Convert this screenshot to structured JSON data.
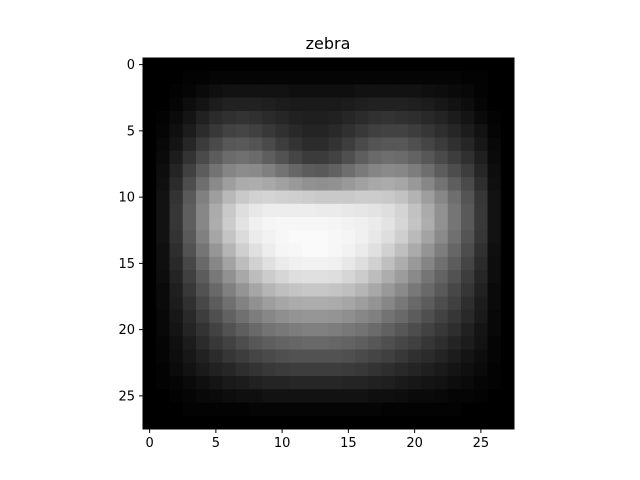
{
  "chart_data": {
    "type": "heatmap",
    "title": "zebra",
    "xlabel": "",
    "ylabel": "",
    "colormap": "gray",
    "vmin": 0,
    "vmax": 1,
    "grid": false,
    "legend": "none",
    "xlim": [
      -0.5,
      27.5
    ],
    "ylim": [
      27.5,
      -0.5
    ],
    "x_ticks": [
      0,
      5,
      10,
      15,
      20,
      25
    ],
    "x_tick_labels": [
      "0",
      "5",
      "10",
      "15",
      "20",
      "25"
    ],
    "y_ticks": [
      0,
      5,
      10,
      15,
      20,
      25
    ],
    "y_tick_labels": [
      "0",
      "5",
      "10",
      "15",
      "20",
      "25"
    ],
    "grid_size": [
      28,
      28
    ],
    "rows": [
      [
        0.0,
        0.0,
        0.0,
        0.0,
        0.0,
        0.0,
        0.0,
        0.0,
        0.0,
        0.0,
        0.0,
        0.0,
        0.0,
        0.0,
        0.0,
        0.0,
        0.0,
        0.0,
        0.0,
        0.0,
        0.0,
        0.0,
        0.0,
        0.0,
        0.0,
        0.0,
        0.0,
        0.0
      ],
      [
        0.0,
        0.0,
        0.0,
        0.01,
        0.01,
        0.02,
        0.02,
        0.02,
        0.02,
        0.02,
        0.02,
        0.02,
        0.02,
        0.02,
        0.02,
        0.02,
        0.02,
        0.02,
        0.02,
        0.02,
        0.02,
        0.02,
        0.02,
        0.02,
        0.01,
        0.01,
        0.0,
        0.0
      ],
      [
        0.0,
        0.0,
        0.01,
        0.02,
        0.04,
        0.06,
        0.07,
        0.07,
        0.07,
        0.07,
        0.07,
        0.06,
        0.06,
        0.06,
        0.06,
        0.06,
        0.07,
        0.07,
        0.07,
        0.07,
        0.07,
        0.06,
        0.05,
        0.04,
        0.03,
        0.01,
        0.0,
        0.0
      ],
      [
        0.0,
        0.0,
        0.02,
        0.05,
        0.08,
        0.11,
        0.13,
        0.13,
        0.13,
        0.12,
        0.11,
        0.1,
        0.1,
        0.1,
        0.1,
        0.11,
        0.12,
        0.13,
        0.13,
        0.13,
        0.12,
        0.11,
        0.09,
        0.07,
        0.05,
        0.02,
        0.0,
        0.0
      ],
      [
        0.0,
        0.01,
        0.04,
        0.08,
        0.13,
        0.17,
        0.19,
        0.2,
        0.19,
        0.17,
        0.15,
        0.13,
        0.12,
        0.12,
        0.13,
        0.15,
        0.17,
        0.19,
        0.2,
        0.19,
        0.18,
        0.16,
        0.14,
        0.11,
        0.08,
        0.04,
        0.01,
        0.0
      ],
      [
        0.0,
        0.02,
        0.06,
        0.11,
        0.17,
        0.22,
        0.26,
        0.27,
        0.25,
        0.22,
        0.19,
        0.16,
        0.14,
        0.14,
        0.16,
        0.19,
        0.22,
        0.25,
        0.26,
        0.26,
        0.24,
        0.21,
        0.18,
        0.15,
        0.11,
        0.07,
        0.02,
        0.0
      ],
      [
        0.0,
        0.03,
        0.08,
        0.15,
        0.23,
        0.29,
        0.34,
        0.35,
        0.33,
        0.29,
        0.24,
        0.2,
        0.17,
        0.17,
        0.2,
        0.24,
        0.29,
        0.33,
        0.34,
        0.34,
        0.31,
        0.27,
        0.23,
        0.19,
        0.15,
        0.09,
        0.03,
        0.0
      ],
      [
        0.0,
        0.04,
        0.11,
        0.2,
        0.29,
        0.36,
        0.42,
        0.44,
        0.42,
        0.37,
        0.32,
        0.27,
        0.23,
        0.23,
        0.26,
        0.31,
        0.37,
        0.41,
        0.43,
        0.42,
        0.39,
        0.34,
        0.29,
        0.24,
        0.19,
        0.12,
        0.04,
        0.0
      ],
      [
        0.0,
        0.05,
        0.14,
        0.25,
        0.36,
        0.45,
        0.52,
        0.55,
        0.54,
        0.5,
        0.45,
        0.4,
        0.36,
        0.35,
        0.38,
        0.43,
        0.48,
        0.52,
        0.54,
        0.53,
        0.49,
        0.43,
        0.36,
        0.3,
        0.24,
        0.15,
        0.05,
        0.0
      ],
      [
        0.0,
        0.06,
        0.17,
        0.3,
        0.43,
        0.54,
        0.62,
        0.67,
        0.68,
        0.66,
        0.63,
        0.6,
        0.57,
        0.56,
        0.57,
        0.6,
        0.63,
        0.66,
        0.67,
        0.65,
        0.6,
        0.53,
        0.45,
        0.37,
        0.29,
        0.18,
        0.06,
        0.0
      ],
      [
        0.0,
        0.07,
        0.2,
        0.35,
        0.5,
        0.62,
        0.72,
        0.79,
        0.82,
        0.83,
        0.82,
        0.81,
        0.8,
        0.79,
        0.79,
        0.79,
        0.8,
        0.8,
        0.79,
        0.76,
        0.7,
        0.62,
        0.53,
        0.43,
        0.33,
        0.21,
        0.07,
        0.0
      ],
      [
        0.0,
        0.07,
        0.21,
        0.37,
        0.53,
        0.67,
        0.79,
        0.87,
        0.91,
        0.93,
        0.93,
        0.93,
        0.93,
        0.92,
        0.92,
        0.91,
        0.9,
        0.89,
        0.87,
        0.83,
        0.76,
        0.67,
        0.57,
        0.46,
        0.35,
        0.22,
        0.07,
        0.0
      ],
      [
        0.0,
        0.07,
        0.21,
        0.37,
        0.53,
        0.68,
        0.8,
        0.89,
        0.94,
        0.96,
        0.97,
        0.97,
        0.97,
        0.97,
        0.96,
        0.95,
        0.94,
        0.92,
        0.89,
        0.84,
        0.77,
        0.68,
        0.57,
        0.46,
        0.35,
        0.22,
        0.07,
        0.0
      ],
      [
        0.0,
        0.07,
        0.2,
        0.35,
        0.5,
        0.65,
        0.77,
        0.86,
        0.92,
        0.95,
        0.97,
        0.98,
        0.98,
        0.98,
        0.97,
        0.96,
        0.94,
        0.91,
        0.87,
        0.81,
        0.73,
        0.64,
        0.54,
        0.44,
        0.33,
        0.21,
        0.07,
        0.0
      ],
      [
        0.0,
        0.06,
        0.18,
        0.32,
        0.46,
        0.59,
        0.71,
        0.81,
        0.88,
        0.93,
        0.96,
        0.97,
        0.98,
        0.98,
        0.97,
        0.95,
        0.92,
        0.88,
        0.82,
        0.75,
        0.67,
        0.58,
        0.49,
        0.4,
        0.3,
        0.19,
        0.06,
        0.0
      ],
      [
        0.0,
        0.06,
        0.16,
        0.28,
        0.41,
        0.53,
        0.64,
        0.74,
        0.82,
        0.88,
        0.92,
        0.94,
        0.95,
        0.95,
        0.94,
        0.91,
        0.87,
        0.82,
        0.75,
        0.68,
        0.6,
        0.52,
        0.44,
        0.36,
        0.27,
        0.17,
        0.05,
        0.0
      ],
      [
        0.0,
        0.05,
        0.14,
        0.25,
        0.36,
        0.47,
        0.57,
        0.66,
        0.74,
        0.8,
        0.84,
        0.87,
        0.88,
        0.88,
        0.87,
        0.84,
        0.8,
        0.74,
        0.68,
        0.61,
        0.54,
        0.46,
        0.39,
        0.32,
        0.24,
        0.15,
        0.05,
        0.0
      ],
      [
        0.0,
        0.04,
        0.12,
        0.22,
        0.32,
        0.41,
        0.5,
        0.58,
        0.65,
        0.71,
        0.75,
        0.77,
        0.78,
        0.78,
        0.77,
        0.75,
        0.71,
        0.66,
        0.6,
        0.54,
        0.47,
        0.41,
        0.35,
        0.28,
        0.21,
        0.13,
        0.04,
        0.0
      ],
      [
        0.0,
        0.04,
        0.11,
        0.19,
        0.28,
        0.36,
        0.44,
        0.51,
        0.57,
        0.62,
        0.65,
        0.67,
        0.68,
        0.68,
        0.67,
        0.65,
        0.62,
        0.58,
        0.53,
        0.47,
        0.41,
        0.36,
        0.3,
        0.25,
        0.18,
        0.11,
        0.04,
        0.0
      ],
      [
        0.0,
        0.03,
        0.09,
        0.16,
        0.24,
        0.31,
        0.38,
        0.44,
        0.49,
        0.53,
        0.56,
        0.58,
        0.59,
        0.59,
        0.58,
        0.56,
        0.53,
        0.5,
        0.45,
        0.41,
        0.36,
        0.31,
        0.26,
        0.21,
        0.16,
        0.1,
        0.03,
        0.0
      ],
      [
        0.0,
        0.03,
        0.08,
        0.14,
        0.2,
        0.26,
        0.32,
        0.37,
        0.41,
        0.45,
        0.47,
        0.49,
        0.5,
        0.5,
        0.49,
        0.47,
        0.45,
        0.42,
        0.38,
        0.34,
        0.3,
        0.26,
        0.22,
        0.18,
        0.13,
        0.08,
        0.03,
        0.0
      ],
      [
        0.0,
        0.02,
        0.06,
        0.11,
        0.17,
        0.22,
        0.26,
        0.3,
        0.34,
        0.37,
        0.39,
        0.4,
        0.41,
        0.41,
        0.4,
        0.39,
        0.37,
        0.34,
        0.31,
        0.28,
        0.25,
        0.21,
        0.18,
        0.14,
        0.11,
        0.07,
        0.02,
        0.0
      ],
      [
        0.0,
        0.02,
        0.05,
        0.09,
        0.13,
        0.17,
        0.21,
        0.24,
        0.27,
        0.29,
        0.31,
        0.32,
        0.32,
        0.32,
        0.32,
        0.31,
        0.29,
        0.27,
        0.25,
        0.22,
        0.19,
        0.17,
        0.14,
        0.11,
        0.08,
        0.05,
        0.02,
        0.0
      ],
      [
        0.0,
        0.01,
        0.04,
        0.07,
        0.1,
        0.13,
        0.15,
        0.18,
        0.2,
        0.22,
        0.23,
        0.24,
        0.24,
        0.24,
        0.24,
        0.23,
        0.22,
        0.2,
        0.18,
        0.16,
        0.14,
        0.12,
        0.1,
        0.08,
        0.06,
        0.04,
        0.01,
        0.0
      ],
      [
        0.0,
        0.01,
        0.02,
        0.04,
        0.06,
        0.08,
        0.1,
        0.11,
        0.13,
        0.14,
        0.14,
        0.15,
        0.15,
        0.15,
        0.15,
        0.14,
        0.14,
        0.13,
        0.12,
        0.1,
        0.09,
        0.08,
        0.07,
        0.05,
        0.04,
        0.02,
        0.01,
        0.0
      ],
      [
        0.0,
        0.0,
        0.01,
        0.02,
        0.03,
        0.04,
        0.05,
        0.06,
        0.06,
        0.07,
        0.07,
        0.07,
        0.07,
        0.07,
        0.07,
        0.07,
        0.07,
        0.06,
        0.06,
        0.05,
        0.04,
        0.04,
        0.03,
        0.02,
        0.02,
        0.01,
        0.0,
        0.0
      ],
      [
        0.0,
        0.0,
        0.0,
        0.01,
        0.01,
        0.01,
        0.01,
        0.01,
        0.02,
        0.02,
        0.02,
        0.02,
        0.02,
        0.02,
        0.02,
        0.02,
        0.02,
        0.02,
        0.01,
        0.01,
        0.01,
        0.01,
        0.01,
        0.01,
        0.0,
        0.0,
        0.0,
        0.0
      ],
      [
        0.0,
        0.0,
        0.0,
        0.0,
        0.0,
        0.0,
        0.0,
        0.0,
        0.0,
        0.0,
        0.0,
        0.0,
        0.0,
        0.0,
        0.0,
        0.0,
        0.0,
        0.0,
        0.0,
        0.0,
        0.0,
        0.0,
        0.0,
        0.0,
        0.0,
        0.0,
        0.0,
        0.0
      ]
    ]
  }
}
